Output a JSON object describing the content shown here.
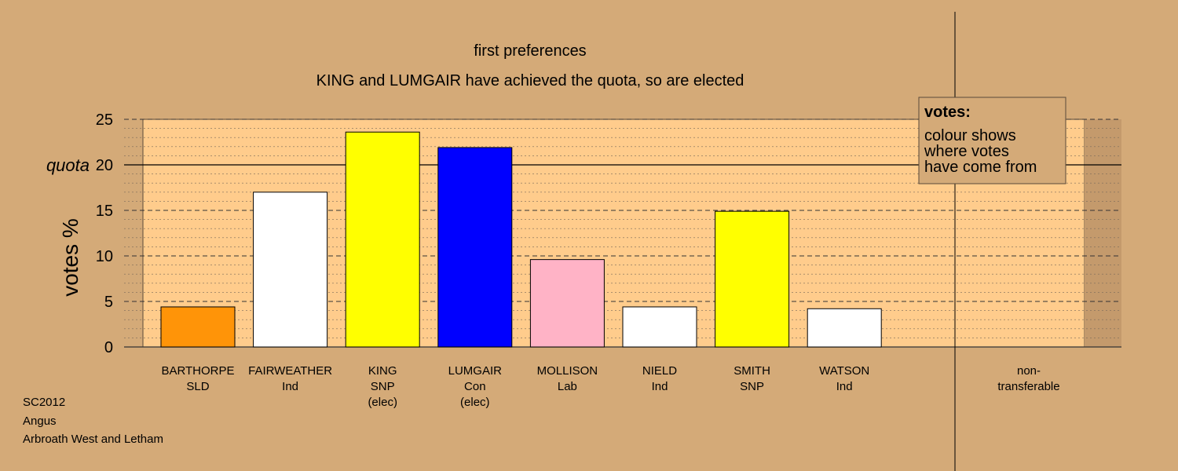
{
  "chart_data": {
    "type": "bar",
    "title": "first preferences",
    "subtitle": "KING and LUMGAIR have achieved the quota, so are elected",
    "ylabel": "votes %",
    "ylim": [
      0,
      25
    ],
    "yticks": [
      0,
      5,
      10,
      15,
      20,
      25
    ],
    "quota": 20,
    "quota_label": "quota",
    "grid": true,
    "categories": [
      {
        "name": "BARTHORPE",
        "party": "SLD",
        "status": "",
        "value": 4.4,
        "color": "#FF9408"
      },
      {
        "name": "FAIRWEATHER",
        "party": "Ind",
        "status": "",
        "value": 17.0,
        "color": "#FFFFFF"
      },
      {
        "name": "KING",
        "party": "SNP",
        "status": "(elec)",
        "value": 23.6,
        "color": "#FFFF00"
      },
      {
        "name": "LUMGAIR",
        "party": "Con",
        "status": "(elec)",
        "value": 21.9,
        "color": "#0000FF"
      },
      {
        "name": "MOLLISON",
        "party": "Lab",
        "status": "",
        "value": 9.6,
        "color": "#FFB3C6"
      },
      {
        "name": "NIELD",
        "party": "Ind",
        "status": "",
        "value": 4.4,
        "color": "#FFFFFF"
      },
      {
        "name": "SMITH",
        "party": "SNP",
        "status": "",
        "value": 14.9,
        "color": "#FFFF00"
      },
      {
        "name": "WATSON",
        "party": "Ind",
        "status": "",
        "value": 4.2,
        "color": "#FFFFFF"
      }
    ],
    "nontransferable": {
      "line1": "non-",
      "line2": "transferable",
      "value": 0
    },
    "legend": {
      "title": "votes:",
      "lines": [
        "colour shows",
        "where votes",
        "have come from"
      ],
      "position": "top-right"
    },
    "colors": {
      "background": "#D4AA78",
      "plot_area": "#FFCC8C",
      "plot_shade": "#C49A6C"
    }
  },
  "footer": {
    "line1": "SC2012",
    "line2": "Angus",
    "line3": "Arbroath West and Letham"
  }
}
